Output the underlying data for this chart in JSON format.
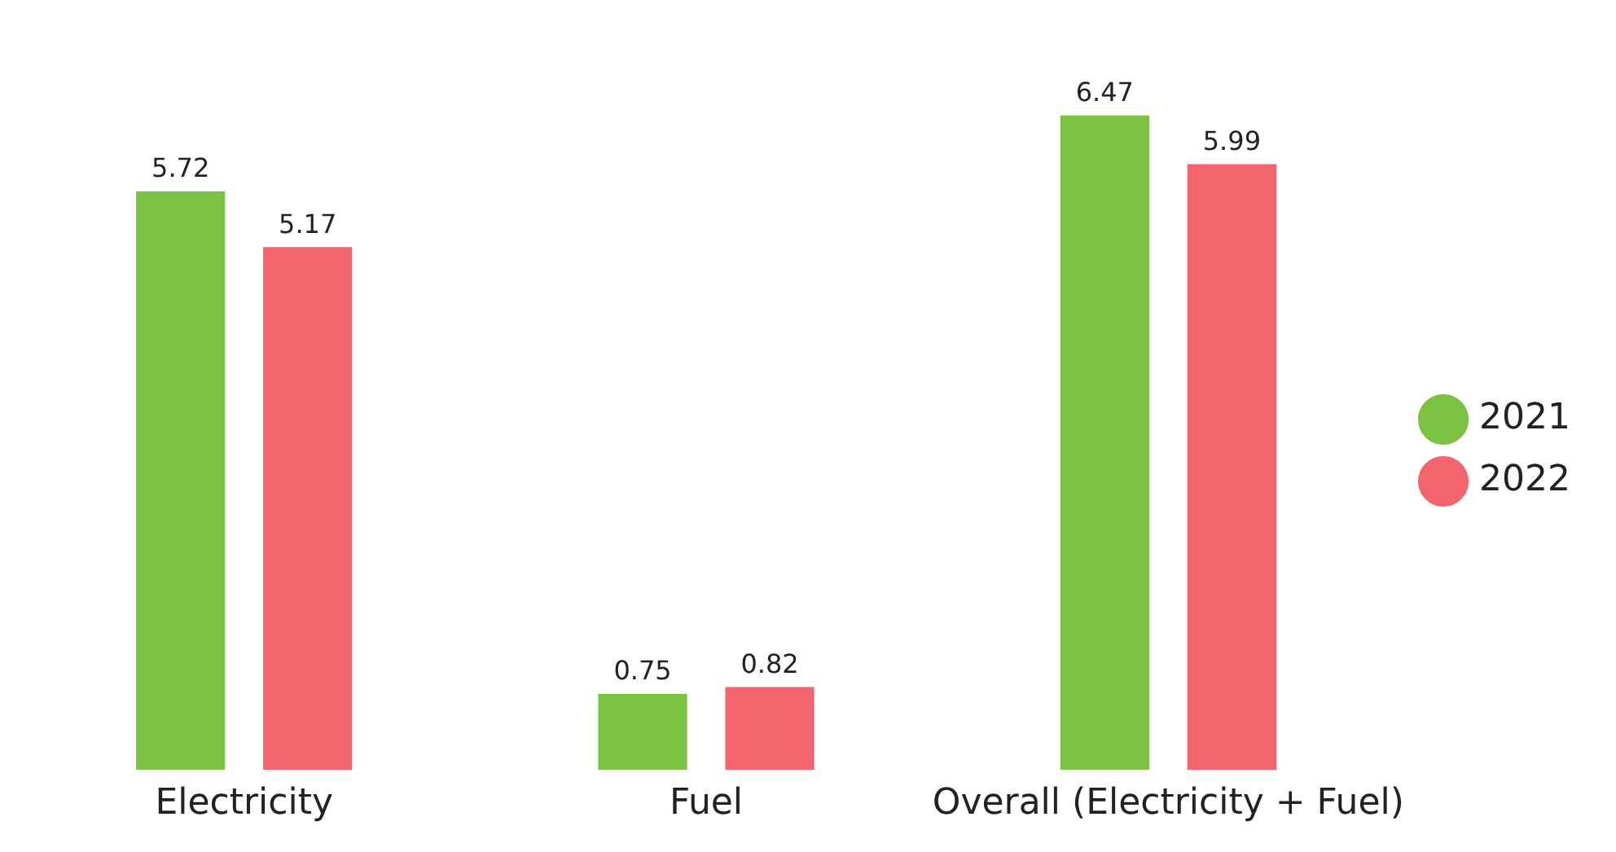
{
  "chart_data": {
    "type": "bar",
    "categories": [
      "Electricity",
      "Fuel",
      "Overall (Electricity + Fuel)"
    ],
    "series": [
      {
        "name": "2021",
        "color": "#7cc242",
        "values": [
          5.72,
          0.75,
          6.47
        ]
      },
      {
        "name": "2022",
        "color": "#f2656f",
        "values": [
          5.17,
          0.82,
          5.99
        ]
      }
    ],
    "data_labels": true,
    "legend": "right",
    "grid": false
  }
}
